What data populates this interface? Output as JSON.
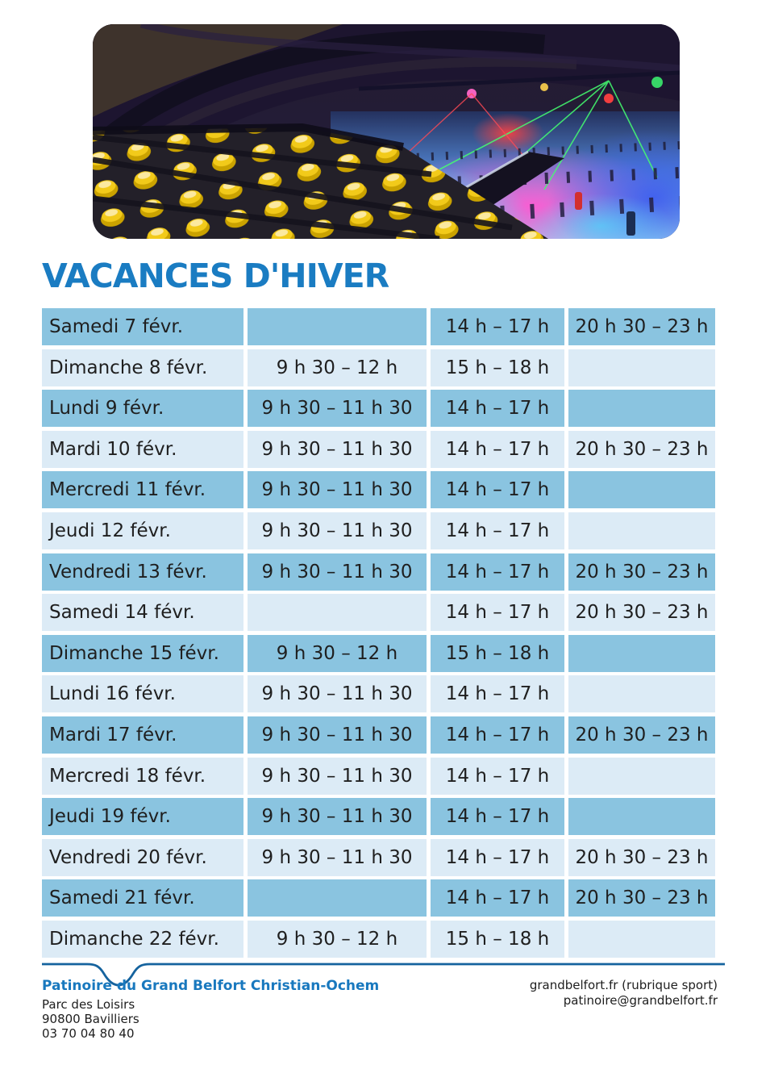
{
  "page": {
    "title": "VACANCES D'HIVER"
  },
  "photo": {
    "description": "Indoor ice rink with yellow stadium seats on the left and skaters on colorfully lit ice"
  },
  "schedule": {
    "rows": [
      {
        "date": "Samedi 7 févr.",
        "morning": "",
        "afternoon": "14 h – 17 h",
        "evening": "20 h 30 – 23 h"
      },
      {
        "date": "Dimanche 8 févr.",
        "morning": "9 h 30 – 12 h",
        "afternoon": "15 h – 18 h",
        "evening": ""
      },
      {
        "date": "Lundi 9 févr.",
        "morning": "9 h 30 – 11 h 30",
        "afternoon": "14 h – 17 h",
        "evening": ""
      },
      {
        "date": "Mardi 10 févr.",
        "morning": "9 h 30 – 11 h 30",
        "afternoon": "14 h – 17 h",
        "evening": "20 h 30 – 23 h"
      },
      {
        "date": "Mercredi 11 févr.",
        "morning": "9 h 30 – 11 h 30",
        "afternoon": "14 h – 17 h",
        "evening": ""
      },
      {
        "date": "Jeudi 12 févr.",
        "morning": "9 h 30 – 11 h 30",
        "afternoon": "14 h – 17 h",
        "evening": ""
      },
      {
        "date": "Vendredi 13 févr.",
        "morning": "9 h 30 – 11 h 30",
        "afternoon": "14 h – 17 h",
        "evening": "20 h 30 – 23 h"
      },
      {
        "date": "Samedi 14 févr.",
        "morning": "",
        "afternoon": "14 h – 17 h",
        "evening": "20 h 30 – 23 h"
      },
      {
        "date": "Dimanche 15 févr.",
        "morning": "9 h 30 – 12 h",
        "afternoon": "15 h – 18 h",
        "evening": ""
      },
      {
        "date": "Lundi 16 févr.",
        "morning": "9 h 30 – 11 h 30",
        "afternoon": "14 h – 17 h",
        "evening": ""
      },
      {
        "date": "Mardi 17 févr.",
        "morning": "9 h 30 – 11 h 30",
        "afternoon": "14 h – 17 h",
        "evening": "20 h 30 – 23 h"
      },
      {
        "date": "Mercredi 18 févr.",
        "morning": "9 h 30 – 11 h 30",
        "afternoon": "14 h – 17 h",
        "evening": ""
      },
      {
        "date": "Jeudi 19 févr.",
        "morning": "9 h 30 – 11 h 30",
        "afternoon": "14 h – 17 h",
        "evening": ""
      },
      {
        "date": "Vendredi 20 févr.",
        "morning": "9 h 30 – 11 h 30",
        "afternoon": "14 h – 17 h",
        "evening": "20 h 30 – 23 h"
      },
      {
        "date": "Samedi 21 févr.",
        "morning": "",
        "afternoon": "14 h – 17 h",
        "evening": "20 h 30 – 23 h"
      },
      {
        "date": "Dimanche 22 févr.",
        "morning": "9 h 30 – 12 h",
        "afternoon": "15 h – 18 h",
        "evening": ""
      }
    ]
  },
  "footer": {
    "venue_name": "Patinoire du Grand Belfort Christian-Ochem",
    "address_line1": "Parc des Loisirs",
    "address_line2": "90800 Bavilliers",
    "phone": "03 70 04 80 40",
    "website": "grandbelfort.fr (rubrique sport)",
    "email": "patinoire@grandbelfort.fr"
  },
  "colors": {
    "title_blue": "#1a7cc2",
    "row_dark_blue": "#8ac4e0",
    "row_light_blue": "#dcebf6",
    "text_dark": "#1f1f1f",
    "footer_line_blue": "#15639e"
  }
}
